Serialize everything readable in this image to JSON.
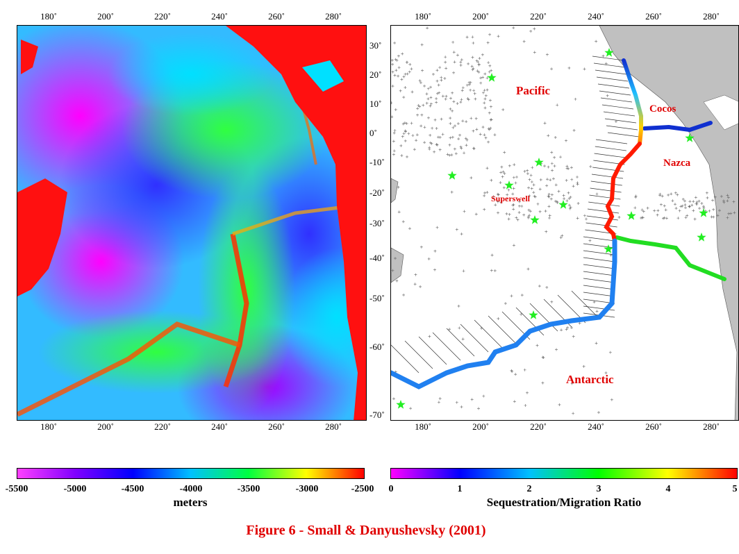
{
  "figure_title": "Figure 6 - Small & Danyushevsky (2001)",
  "lon_ticks": [
    "180˚",
    "200˚",
    "220˚",
    "240˚",
    "260˚",
    "280˚"
  ],
  "lat_ticks": [
    "30˚",
    "20˚",
    "10˚",
    "0˚",
    "-10˚",
    "-20˚",
    "-30˚",
    "-40˚",
    "-50˚",
    "-60˚",
    "-70˚"
  ],
  "left_map": {
    "layer": "bathymetry",
    "colorbar": {
      "title": "meters",
      "tick_labels": [
        "-5500",
        "-5000",
        "-4500",
        "-4000",
        "-3500",
        "-3000",
        "-2500"
      ],
      "colors": [
        "#ff00ff",
        "#8000ff",
        "#0000ff",
        "#00c0ff",
        "#00ff40",
        "#ffff00",
        "#ff0000"
      ]
    }
  },
  "right_map": {
    "plate_labels": {
      "pacific": "Pacific",
      "cocos": "Cocos",
      "nazca": "Nazca",
      "superswell": "Superswell",
      "antarctic": "Antarctic"
    },
    "colorbar": {
      "title": "Sequestration/Migration Ratio",
      "tick_labels": [
        "0",
        "1",
        "2",
        "3",
        "4",
        "5"
      ],
      "colors": [
        "#ff00ff",
        "#0000ff",
        "#00c0ff",
        "#00ff00",
        "#ffff00",
        "#ff0000"
      ]
    },
    "hotspot_marker_color": "#22ee22",
    "land_color": "#c0c0c0"
  },
  "colors": {
    "title": "#e00000",
    "land_left": "#ff0000"
  }
}
